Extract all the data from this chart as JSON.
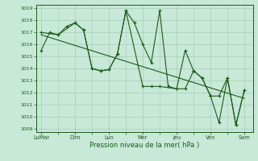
{
  "bg_color": "#c8e8d8",
  "grid_color": "#a8ccb8",
  "line_color": "#1a5c1a",
  "xlabel": "Pression niveau de la mer( hPa )",
  "ylim_min": 1009,
  "ylim_max": 1019,
  "yticks": [
    1009,
    1010,
    1011,
    1012,
    1013,
    1014,
    1015,
    1016,
    1017,
    1018,
    1019
  ],
  "xtick_labels": [
    "LuMar",
    "Dim",
    "Lun",
    "Mer",
    "Jeu",
    "Ven",
    "Sam"
  ],
  "xtick_positions": [
    0,
    2,
    4,
    6,
    8,
    10,
    12
  ],
  "line1_x": [
    0,
    0.5,
    1.0,
    1.5,
    2.0,
    2.5,
    3.0,
    3.5,
    4.0,
    4.5,
    5.0,
    5.5,
    6.0,
    6.5,
    7.0,
    7.5,
    8.0,
    8.5,
    9.0,
    9.5,
    10.0,
    10.5,
    11.0,
    11.5,
    12.0
  ],
  "line1_y": [
    1015.5,
    1017.0,
    1016.8,
    1017.5,
    1017.8,
    1017.2,
    1014.0,
    1013.8,
    1013.9,
    1015.2,
    1018.8,
    1017.8,
    1016.0,
    1014.5,
    1018.8,
    1012.5,
    1012.3,
    1015.5,
    1013.8,
    1013.2,
    1011.7,
    1009.5,
    1013.2,
    1009.3,
    1012.2
  ],
  "line2_x": [
    0,
    1.0,
    2.0,
    2.5,
    3.0,
    3.5,
    4.0,
    4.5,
    5.0,
    6.0,
    6.5,
    7.0,
    8.0,
    8.5,
    9.0,
    9.5,
    10.0,
    10.5,
    11.0,
    11.5,
    12.0
  ],
  "line2_y": [
    1017.0,
    1016.8,
    1017.8,
    1017.2,
    1014.0,
    1013.8,
    1013.9,
    1015.2,
    1018.8,
    1012.5,
    1012.5,
    1012.5,
    1012.3,
    1012.3,
    1013.8,
    1013.2,
    1011.7,
    1011.7,
    1013.2,
    1009.3,
    1012.2
  ],
  "trend_x": [
    0,
    12
  ],
  "trend_y": [
    1016.8,
    1011.5
  ]
}
